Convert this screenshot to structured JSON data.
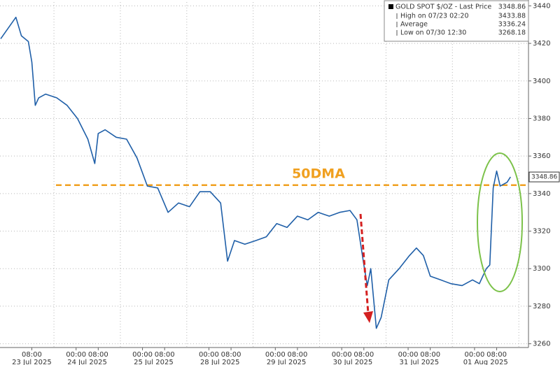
{
  "chart_data": {
    "type": "line",
    "x": [
      "2025-07-22 20:45",
      "2025-07-23 02:15",
      "2025-07-23 04:15",
      "2025-07-23 06:45",
      "2025-07-23 08:00",
      "2025-07-23 09:15",
      "2025-07-23 10:30",
      "2025-07-23 13:00",
      "2025-07-23 17:00",
      "2025-07-23 20:45",
      "2025-07-24 00:30",
      "2025-07-24 04:15",
      "2025-07-24 06:45",
      "2025-07-24 08:00",
      "2025-07-24 10:30",
      "2025-07-24 14:30",
      "2025-07-24 18:15",
      "2025-07-24 22:00",
      "2025-07-25 01:45",
      "2025-07-25 05:30",
      "2025-07-25 09:15",
      "2025-07-25 13:00",
      "2025-07-25 17:00",
      "2025-07-25 20:45",
      "2025-07-28 00:30",
      "2025-07-28 04:15",
      "2025-07-28 06:45",
      "2025-07-28 09:15",
      "2025-07-28 13:00",
      "2025-07-28 17:00",
      "2025-07-28 20:45",
      "2025-07-29 00:30",
      "2025-07-29 04:15",
      "2025-07-29 08:00",
      "2025-07-29 11:45",
      "2025-07-29 15:30",
      "2025-07-29 19:30",
      "2025-07-29 23:15",
      "2025-07-30 03:00",
      "2025-07-30 05:30",
      "2025-07-30 08:00",
      "2025-07-30 09:15",
      "2025-07-30 10:30",
      "2025-07-30 12:30",
      "2025-07-30 14:15",
      "2025-07-30 17:00",
      "2025-07-30 20:45",
      "2025-07-31 00:30",
      "2025-07-31 03:00",
      "2025-07-31 05:30",
      "2025-07-31 08:00",
      "2025-07-31 11:45",
      "2025-07-31 15:30",
      "2025-07-31 19:30",
      "2025-07-31 23:15",
      "2025-08-01 01:45",
      "2025-08-01 04:15",
      "2025-08-01 05:30",
      "2025-08-01 06:45",
      "2025-08-01 08:00",
      "2025-08-01 09:15",
      "2025-08-01 11:45",
      "2025-08-01 13:00"
    ],
    "series": [
      {
        "name": "GOLD SPOT $/OZ - Last Price",
        "color": "#1f5fa8",
        "values": [
          3422.5,
          3433.9,
          3424,
          3421,
          3410,
          3387,
          3391,
          3393,
          3391,
          3387,
          3380,
          3369,
          3356,
          3372,
          3374,
          3370,
          3369,
          3359,
          3344,
          3343,
          3330,
          3335,
          3333,
          3341,
          3341,
          3335,
          3304,
          3315,
          3313,
          3315,
          3317,
          3324,
          3322,
          3328,
          3326,
          3330,
          3328,
          3330,
          3331,
          3326,
          3302,
          3291,
          3300,
          3268.2,
          3274,
          3294,
          3300,
          3307,
          3311,
          3307,
          3296,
          3294,
          3292,
          3291,
          3294,
          3292,
          3300,
          3302,
          3343,
          3352,
          3344,
          3346,
          3348.9
        ]
      }
    ],
    "xlim": [
      "2025-07-22 20:30",
      "2025-08-01 19:30"
    ],
    "xticks": [
      {
        "value": "2025-07-23 08:00",
        "label": "08:00"
      },
      {
        "value": "2025-07-24 00:00",
        "label": "00:00"
      },
      {
        "value": "2025-07-24 08:00",
        "label": "08:00"
      },
      {
        "value": "2025-07-25 00:00",
        "label": "00:00"
      },
      {
        "value": "2025-07-25 08:00",
        "label": "08:00"
      },
      {
        "value": "2025-07-28 00:00",
        "label": "00:00"
      },
      {
        "value": "2025-07-28 08:00",
        "label": "08:00"
      },
      {
        "value": "2025-07-29 00:00",
        "label": "00:00"
      },
      {
        "value": "2025-07-29 08:00",
        "label": "08:00"
      },
      {
        "value": "2025-07-30 00:00",
        "label": "00:00"
      },
      {
        "value": "2025-07-30 08:00",
        "label": "08:00"
      },
      {
        "value": "2025-07-31 00:00",
        "label": "00:00"
      },
      {
        "value": "2025-07-31 08:00",
        "label": "08:00"
      },
      {
        "value": "2025-08-01 00:00",
        "label": "00:00"
      },
      {
        "value": "2025-08-01 08:00",
        "label": "08:00"
      }
    ],
    "date_labels": [
      {
        "value": "2025-07-23",
        "label": "23 Jul 2025"
      },
      {
        "value": "2025-07-24",
        "label": "24 Jul 2025"
      },
      {
        "value": "2025-07-25",
        "label": "25 Jul 2025"
      },
      {
        "value": "2025-07-28",
        "label": "28 Jul 2025"
      },
      {
        "value": "2025-07-29",
        "label": "29 Jul 2025"
      },
      {
        "value": "2025-07-30",
        "label": "30 Jul 2025"
      },
      {
        "value": "2025-07-31",
        "label": "31 Jul 2025"
      },
      {
        "value": "2025-08-01",
        "label": "01 Aug 2025"
      }
    ],
    "x_gridlines": [
      "2025-07-23 16:00",
      "2025-07-24 16:00",
      "2025-07-25 16:00",
      "2025-07-28 16:00",
      "2025-07-29 16:00",
      "2025-07-30 16:00",
      "2025-07-31 16:00",
      "2025-08-01 16:00"
    ],
    "ylim": [
      3258,
      3442
    ],
    "yticks": [
      3260,
      3280,
      3300,
      3320,
      3340,
      3360,
      3380,
      3400,
      3420,
      3440
    ],
    "grid": true,
    "reference_line": {
      "label": "50DMA",
      "value": 3344.5,
      "color": "#f0a020"
    },
    "legend": {
      "title": "GOLD SPOT $/OZ - Last Price",
      "title_value": 3348.86,
      "rows": [
        {
          "label": "High on 07/23 02:20",
          "value": 3433.88
        },
        {
          "label": "Average",
          "value": 3336.24
        },
        {
          "label": "Low on 07/30 12:30",
          "value": 3268.18
        }
      ]
    }
  }
}
